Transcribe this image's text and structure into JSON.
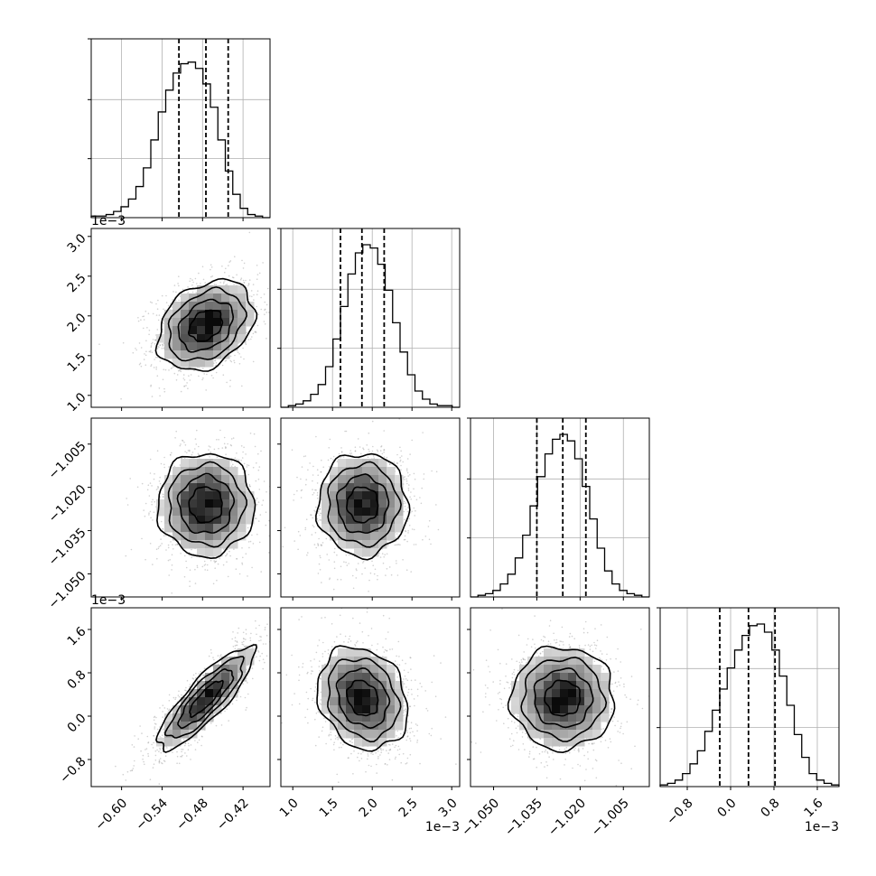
{
  "chart_data": {
    "type": "corner",
    "n_params": 4,
    "grid": true,
    "colors": {
      "line": "#000000",
      "grid": "#b0b0b0",
      "scatter": "#9a9a9a"
    },
    "params": [
      {
        "range": [
          -0.645,
          -0.38
        ],
        "ticks": [
          -0.6,
          -0.54,
          -0.48,
          -0.42
        ],
        "tick_labels": [
          "−0.60",
          "−0.54",
          "−0.48",
          "−0.42"
        ],
        "offset_text": "",
        "center": -0.475,
        "sigma": 0.034,
        "quantiles": [
          -0.515,
          -0.475,
          -0.442
        ],
        "hist_bins": [
          0.01,
          0.01,
          0.02,
          0.04,
          0.07,
          0.12,
          0.2,
          0.32,
          0.5,
          0.68,
          0.82,
          0.93,
          0.99,
          1.0,
          0.96,
          0.86,
          0.71,
          0.5,
          0.3,
          0.15,
          0.06,
          0.02,
          0.01,
          0.0
        ],
        "hist_max": 1.15
      },
      {
        "range": [
          0.85,
          3.1
        ],
        "ticks": [
          1.0,
          1.5,
          2.0,
          2.5,
          3.0
        ],
        "tick_labels": [
          "1.0",
          "1.5",
          "2.0",
          "2.5",
          "3.0"
        ],
        "offset_text": "1e−3",
        "center": 1.88,
        "sigma": 0.27,
        "quantiles": [
          1.6,
          1.87,
          2.15
        ],
        "hist_bins": [
          0.0,
          0.01,
          0.02,
          0.04,
          0.08,
          0.14,
          0.25,
          0.42,
          0.62,
          0.82,
          0.95,
          1.0,
          0.98,
          0.88,
          0.72,
          0.52,
          0.34,
          0.2,
          0.1,
          0.05,
          0.02,
          0.01,
          0.01,
          0.0
        ],
        "hist_max": 1.1
      },
      {
        "range": [
          -1.058,
          -0.996
        ],
        "ticks": [
          -1.05,
          -1.035,
          -1.02,
          -1.005
        ],
        "tick_labels": [
          "−1.050",
          "−1.035",
          "−1.020",
          "−1.005"
        ],
        "offset_text": "",
        "center": -1.026,
        "sigma": 0.0085,
        "quantiles": [
          -1.035,
          -1.026,
          -1.018
        ],
        "hist_bins": [
          0.0,
          0.01,
          0.02,
          0.04,
          0.08,
          0.14,
          0.24,
          0.38,
          0.56,
          0.74,
          0.88,
          0.97,
          1.0,
          0.96,
          0.85,
          0.68,
          0.48,
          0.3,
          0.16,
          0.08,
          0.04,
          0.02,
          0.01,
          0.0
        ],
        "hist_max": 1.1
      },
      {
        "range": [
          -1.3,
          2.0
        ],
        "ticks": [
          -0.8,
          0.0,
          0.8,
          1.6
        ],
        "tick_labels": [
          "−0.8",
          "0.0",
          "0.8",
          "1.6"
        ],
        "offset_text": "1e−3",
        "center": 0.33,
        "sigma": 0.45,
        "quantiles": [
          -0.2,
          0.33,
          0.82
        ],
        "hist_bins": [
          0.01,
          0.02,
          0.04,
          0.08,
          0.14,
          0.22,
          0.34,
          0.47,
          0.6,
          0.73,
          0.84,
          0.93,
          0.99,
          1.0,
          0.95,
          0.84,
          0.68,
          0.5,
          0.32,
          0.18,
          0.08,
          0.04,
          0.02,
          0.01
        ],
        "hist_max": 1.1
      }
    ],
    "correlations": [
      {
        "row": 1,
        "col": 0,
        "rho": 0.3
      },
      {
        "row": 2,
        "col": 0,
        "rho": 0.0
      },
      {
        "row": 2,
        "col": 1,
        "rho": 0.0
      },
      {
        "row": 3,
        "col": 0,
        "rho": 0.85
      },
      {
        "row": 3,
        "col": 1,
        "rho": -0.2
      },
      {
        "row": 3,
        "col": 2,
        "rho": 0.0
      }
    ],
    "offset_texts_y": [
      {
        "row": 1,
        "text": "1e−3"
      },
      {
        "row": 3,
        "text": "1e−3"
      }
    ]
  }
}
